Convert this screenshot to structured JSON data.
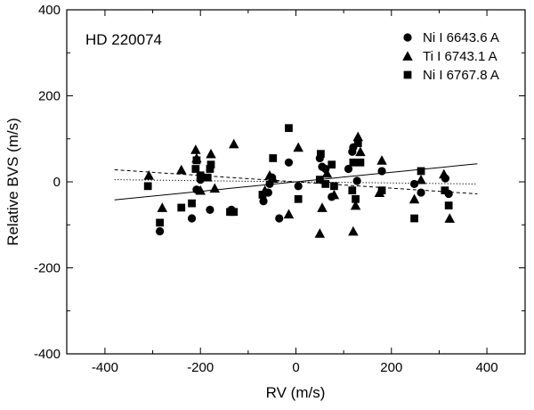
{
  "chart_data": {
    "type": "scatter",
    "title": "",
    "annotation": "HD 220074",
    "xlabel": "RV (m/s)",
    "ylabel": "Relative BVS (m/s)",
    "xlim": [
      -480,
      480
    ],
    "ylim": [
      -400,
      400
    ],
    "x_major_ticks": [
      -400,
      -200,
      0,
      200,
      400
    ],
    "y_major_ticks": [
      -400,
      -200,
      0,
      200,
      400
    ],
    "x_minor_ticks": [
      -300,
      -100,
      100,
      300
    ],
    "y_minor_ticks": [
      -300,
      -100,
      100,
      300
    ],
    "grid": false,
    "legend_position": "top-right",
    "series": [
      {
        "name": "Ni I 6643.6 A",
        "marker": "circle",
        "color": "#000000",
        "points": [
          [
            -285,
            -115
          ],
          [
            -218,
            -85
          ],
          [
            -208,
            -18
          ],
          [
            -200,
            5
          ],
          [
            -180,
            -65
          ],
          [
            -135,
            -65
          ],
          [
            -68,
            -45
          ],
          [
            -58,
            -25
          ],
          [
            -55,
            -5
          ],
          [
            -50,
            10
          ],
          [
            -35,
            -85
          ],
          [
            -15,
            45
          ],
          [
            5,
            -10
          ],
          [
            50,
            55
          ],
          [
            55,
            35
          ],
          [
            62,
            30
          ],
          [
            75,
            -35
          ],
          [
            110,
            30
          ],
          [
            118,
            70
          ],
          [
            120,
            80
          ],
          [
            128,
            2
          ],
          [
            180,
            25
          ],
          [
            248,
            -5
          ],
          [
            262,
            -25
          ],
          [
            313,
            8
          ],
          [
            320,
            -28
          ]
        ]
      },
      {
        "name": "Ti I 6743.1 A",
        "marker": "triangle",
        "color": "#000000",
        "points": [
          [
            -308,
            15
          ],
          [
            -280,
            -60
          ],
          [
            -240,
            28
          ],
          [
            -210,
            75
          ],
          [
            -208,
            55
          ],
          [
            -200,
            -20
          ],
          [
            -178,
            65
          ],
          [
            -170,
            -15
          ],
          [
            -130,
            88
          ],
          [
            -65,
            -20
          ],
          [
            -55,
            15
          ],
          [
            -48,
            8
          ],
          [
            -15,
            -75
          ],
          [
            5,
            80
          ],
          [
            50,
            -120
          ],
          [
            55,
            -60
          ],
          [
            65,
            20
          ],
          [
            80,
            -30
          ],
          [
            120,
            -115
          ],
          [
            125,
            -55
          ],
          [
            130,
            105
          ],
          [
            135,
            70
          ],
          [
            175,
            -25
          ],
          [
            180,
            50
          ],
          [
            248,
            -40
          ],
          [
            262,
            5
          ],
          [
            310,
            18
          ],
          [
            322,
            -85
          ]
        ]
      },
      {
        "name": "Ni I 6767.8 A",
        "marker": "square",
        "color": "#000000",
        "points": [
          [
            -310,
            -10
          ],
          [
            -285,
            -95
          ],
          [
            -240,
            -60
          ],
          [
            -218,
            -50
          ],
          [
            -210,
            30
          ],
          [
            -208,
            50
          ],
          [
            -200,
            15
          ],
          [
            -185,
            10
          ],
          [
            -180,
            30
          ],
          [
            -178,
            40
          ],
          [
            -138,
            -70
          ],
          [
            -130,
            -70
          ],
          [
            -70,
            -30
          ],
          [
            -48,
            55
          ],
          [
            -15,
            125
          ],
          [
            5,
            -40
          ],
          [
            50,
            5
          ],
          [
            52,
            65
          ],
          [
            62,
            -5
          ],
          [
            75,
            40
          ],
          [
            80,
            -10
          ],
          [
            118,
            -20
          ],
          [
            120,
            45
          ],
          [
            125,
            -40
          ],
          [
            130,
            90
          ],
          [
            135,
            45
          ],
          [
            180,
            -20
          ],
          [
            248,
            -85
          ],
          [
            262,
            25
          ],
          [
            312,
            -20
          ],
          [
            320,
            -55
          ]
        ]
      }
    ],
    "fit_lines": [
      {
        "style": "solid",
        "from": [
          -380,
          -42
        ],
        "to": [
          380,
          42
        ]
      },
      {
        "style": "dashed",
        "from": [
          -380,
          28
        ],
        "to": [
          380,
          -28
        ]
      },
      {
        "style": "dotted",
        "from": [
          -380,
          5
        ],
        "to": [
          380,
          -5
        ]
      }
    ]
  }
}
